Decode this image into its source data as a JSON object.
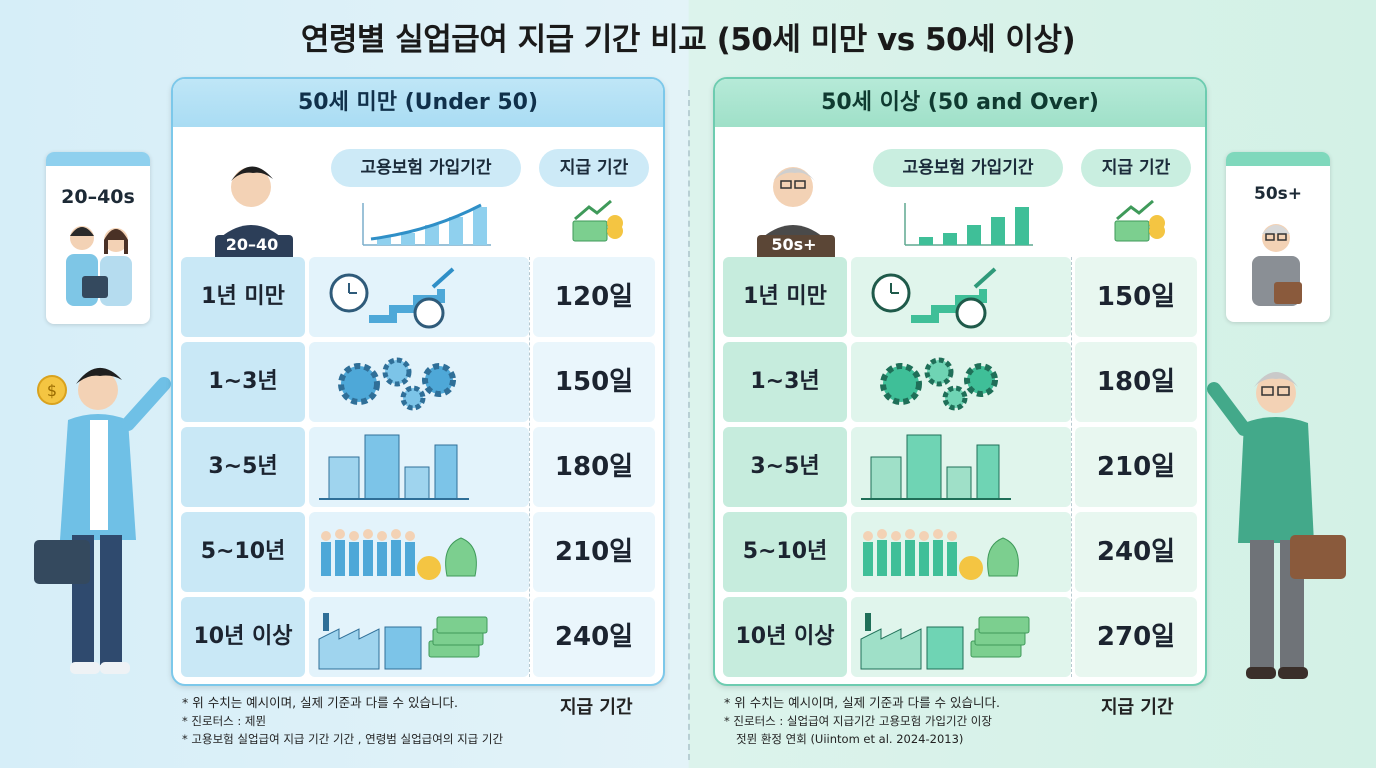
{
  "title": "연령별 실업급여 지급 기간 비교 (50세 미만 vs 50세 이상)",
  "left": {
    "heading": "50세 미만 (Under 50)",
    "col_period": "고용보험 가입기간",
    "col_benefit": "지급 기간",
    "avatar_badge": "20–40",
    "side_card_label": "20–40s",
    "rows": [
      {
        "label": "1년 미만",
        "value": "120일"
      },
      {
        "label": "1~3년",
        "value": "150일"
      },
      {
        "label": "3~5년",
        "value": "180일"
      },
      {
        "label": "5~10년",
        "value": "210일"
      },
      {
        "label": "10년 이상",
        "value": "240일"
      }
    ],
    "notes": [
      "* 위 수치는 예시이며, 실제 기준과 다를 수 있습니다.",
      "* 진로터스 : 제뮌",
      "* 고용보험 실업급여 지급 기간 기간 , 연령범 실업급여의 지급 기간"
    ],
    "footer_label": "지급 기간",
    "accent": "#4fb3e3"
  },
  "right": {
    "heading": "50세 이상 (50 and Over)",
    "col_period": "고용보험 가입기간",
    "col_benefit": "지급 기간",
    "avatar_badge": "50s+",
    "side_card_label": "50s+",
    "rows": [
      {
        "label": "1년 미만",
        "value": "150일"
      },
      {
        "label": "1~3년",
        "value": "180일"
      },
      {
        "label": "3~5년",
        "value": "210일"
      },
      {
        "label": "5~10년",
        "value": "240일"
      },
      {
        "label": "10년 이상",
        "value": "270일"
      }
    ],
    "notes": [
      "* 위 수치는 예시이며, 실제 기준과 다를 수 있습니다.",
      "* 진로터스 : 실업급여 지급기간 고용모험 가입기간 이장",
      "젓뮌 환정 연회 (Uiintom et al. 2024-2013)"
    ],
    "footer_label": "지급 기간",
    "accent": "#3fbf98"
  }
}
